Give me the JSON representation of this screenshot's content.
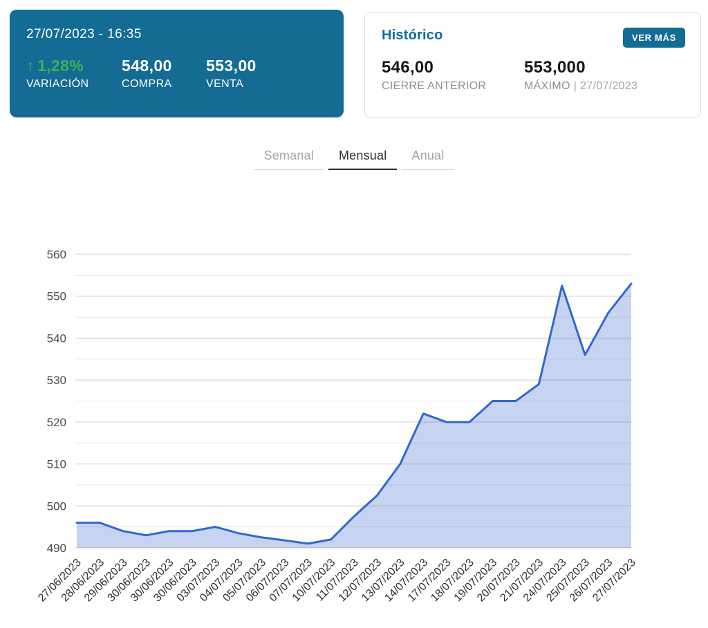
{
  "quote_card": {
    "datetime": "27/07/2023 - 16:35",
    "variation": {
      "arrow": "↑",
      "value": "1,28%",
      "label": "VARIACIÓN"
    },
    "buy": {
      "value": "548,00",
      "label": "COMPRA"
    },
    "sell": {
      "value": "553,00",
      "label": "VENTA"
    }
  },
  "history_card": {
    "title": "Histórico",
    "button_label": "VER MÁS",
    "previous_close": {
      "value": "546,00",
      "label": "CIERRE ANTERIOR"
    },
    "maximum": {
      "value": "553,000",
      "label": "MÁXIMO",
      "separator": "|",
      "date": "27/07/2023"
    }
  },
  "tabs": {
    "items": [
      {
        "label": "Semanal",
        "active": false
      },
      {
        "label": "Mensual",
        "active": true
      },
      {
        "label": "Anual",
        "active": false
      }
    ]
  },
  "colors": {
    "card_background": "#146B94",
    "accent_blue": "#0C6B9E",
    "positive_green": "#3BB152",
    "chart_line": "#3366CC",
    "chart_fill": "rgba(51,102,204,0.28)",
    "grid_major": "#C9C9C9",
    "grid_minor": "#E8E8E8"
  },
  "chart_data": {
    "type": "area",
    "title": "",
    "xlabel": "",
    "ylabel": "",
    "legend": "none",
    "grid": true,
    "ylim": [
      490,
      560
    ],
    "ytick_step": 10,
    "minor_step": 5,
    "categories": [
      "27/06/2023",
      "28/06/2023",
      "29/06/2023",
      "30/06/2023",
      "30/06/2023",
      "30/06/2023",
      "03/07/2023",
      "04/07/2023",
      "05/07/2023",
      "06/07/2023",
      "07/07/2023",
      "10/07/2023",
      "11/07/2023",
      "12/07/2023",
      "13/07/2023",
      "14/07/2023",
      "17/07/2023",
      "18/07/2023",
      "19/07/2023",
      "20/07/2023",
      "21/07/2023",
      "24/07/2023",
      "25/07/2023",
      "26/07/2023",
      "27/07/2023"
    ],
    "values": [
      496,
      496,
      494,
      493,
      494,
      494,
      495,
      493.5,
      492.5,
      491.8,
      491,
      492,
      497.5,
      502.5,
      510,
      522,
      520,
      520,
      525,
      525,
      529,
      552.5,
      536,
      546,
      553
    ]
  }
}
